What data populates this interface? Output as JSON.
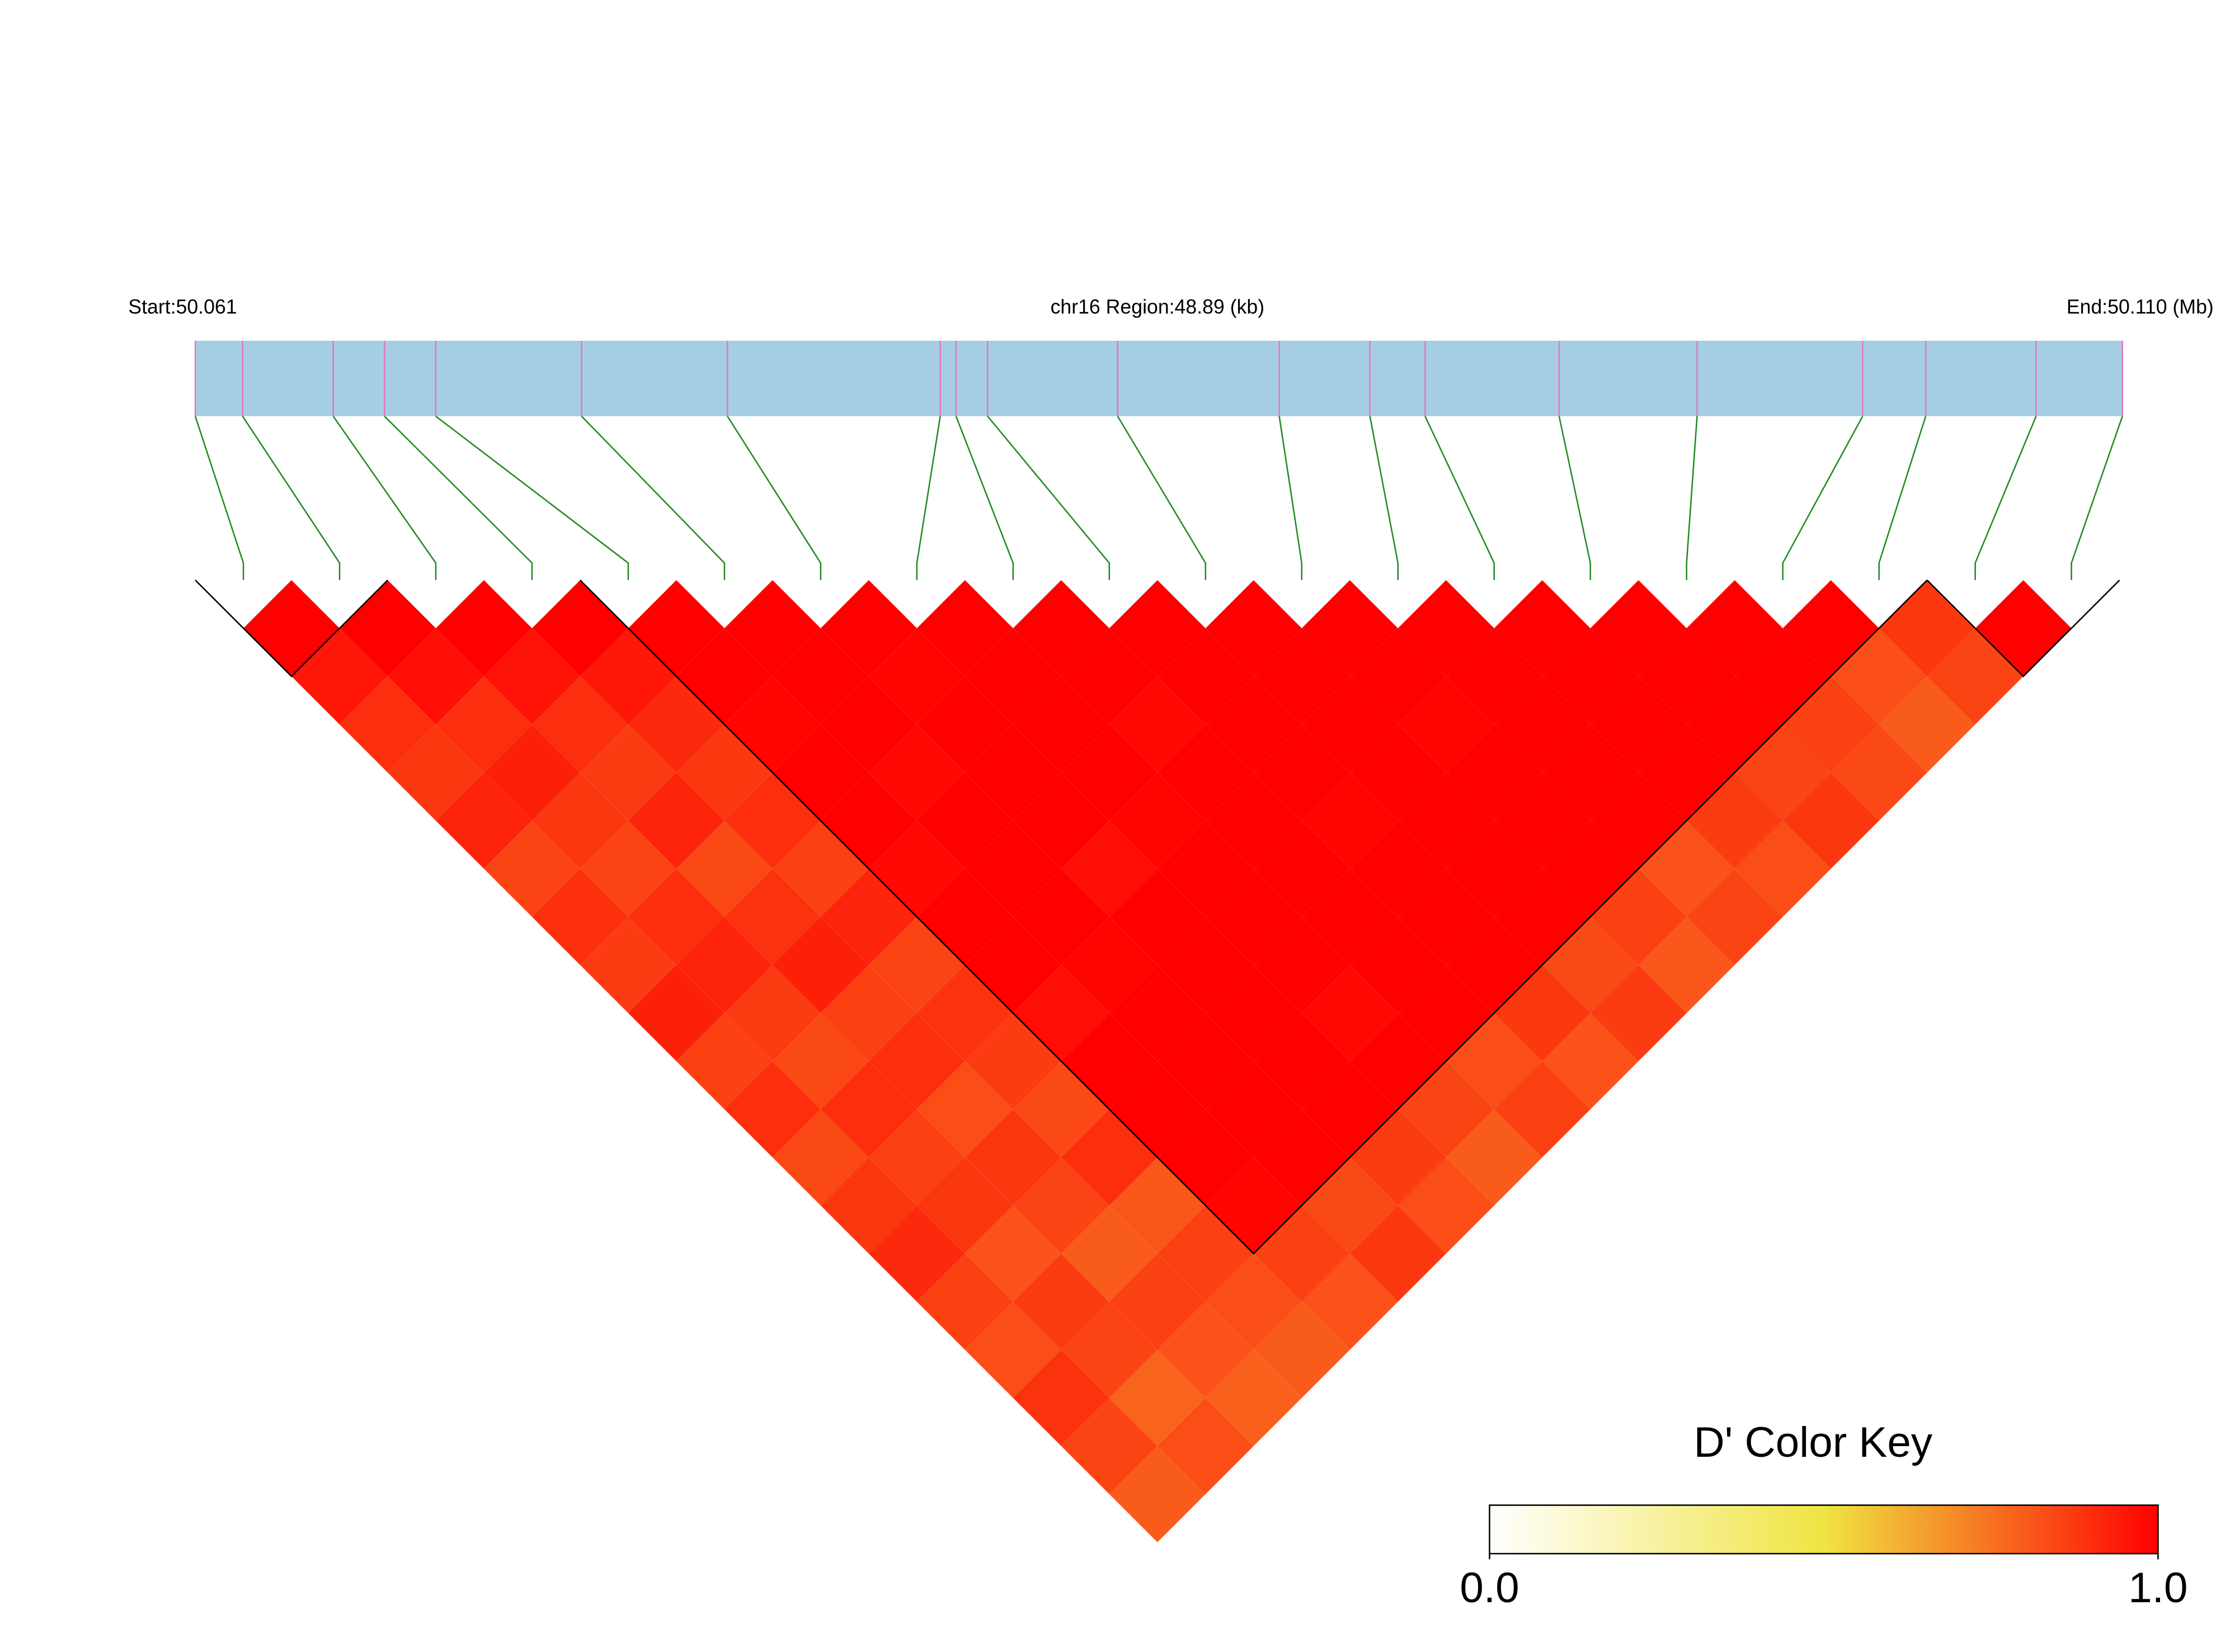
{
  "chart_data": {
    "type": "ld-heatmap",
    "start_label": "Start:50.061",
    "region_label": "chr16 Region:48.89 (kb)",
    "end_label": "End:50.110 (Mb)",
    "key_title": "D' Color Key",
    "xlim": [
      0,
      48.89
    ],
    "snp_positions": [
      0,
      1.2,
      3.5,
      4.8,
      6.1,
      9.8,
      13.5,
      18.9,
      19.3,
      20.1,
      23.4,
      27.5,
      29.8,
      31.2,
      34.6,
      38.1,
      42.3,
      43.9,
      46.7,
      48.89
    ],
    "dprime": [
      [
        1,
        0.95,
        0.9,
        0.88,
        0.92,
        0.85,
        0.9,
        0.87,
        0.93,
        0.86,
        0.9,
        0.84,
        0.88,
        0.91,
        0.86,
        0.83,
        0.89,
        0.85,
        0.8
      ],
      [
        1,
        0.97,
        0.9,
        0.93,
        0.88,
        0.85,
        0.9,
        0.92,
        0.87,
        0.84,
        0.9,
        0.86,
        0.88,
        0.82,
        0.87,
        0.85,
        0.78,
        0.83
      ],
      [
        1,
        0.96,
        0.9,
        0.87,
        0.92,
        0.84,
        0.89,
        0.93,
        0.86,
        0.9,
        0.83,
        0.88,
        0.85,
        0.8,
        0.86,
        0.82,
        0.79
      ],
      [
        1,
        0.95,
        0.91,
        0.88,
        0.9,
        0.86,
        0.92,
        0.85,
        0.89,
        0.87,
        0.84,
        0.9,
        0.81,
        0.86,
        0.83,
        0.8
      ],
      [
        1,
        1,
        0.99,
        1,
        1,
        0.98,
        1,
        1,
        0.97,
        1,
        1,
        1,
        0.99,
        0.86,
        0.82
      ],
      [
        1,
        1,
        1,
        0.98,
        1,
        1,
        1,
        0.99,
        1,
        1,
        1,
        1,
        0.84,
        0.88
      ],
      [
        1,
        0.99,
        1,
        1,
        1,
        0.97,
        1,
        1,
        1,
        1,
        1,
        0.87,
        0.83
      ],
      [
        1,
        1,
        1,
        1,
        0.99,
        1,
        1,
        1,
        0.98,
        1,
        0.85,
        0.8
      ],
      [
        1,
        1,
        0.98,
        1,
        1,
        1,
        1,
        1,
        1,
        0.83,
        0.86
      ],
      [
        1,
        1,
        1,
        1,
        0.99,
        1,
        1,
        1,
        0.88,
        0.82
      ],
      [
        1,
        1,
        1,
        1,
        1,
        1,
        1,
        0.84,
        0.87
      ],
      [
        1,
        1,
        0.99,
        1,
        1,
        1,
        0.86,
        0.81
      ],
      [
        1,
        1,
        1,
        1,
        1,
        0.82,
        0.85
      ],
      [
        1,
        1,
        1,
        1,
        0.87,
        0.83
      ],
      [
        1,
        1,
        1,
        0.85,
        0.88
      ],
      [
        1,
        1,
        0.86,
        0.84
      ],
      [
        1,
        0.83,
        0.8
      ],
      [
        0.88,
        0.85
      ],
      [
        1
      ]
    ],
    "blocks": [
      [
        0,
        1
      ],
      [
        4,
        17
      ],
      [
        18,
        19
      ]
    ],
    "key_lim": [
      0,
      1
    ],
    "key_ticks": [
      {
        "value": 0,
        "label": "0.0"
      },
      {
        "value": 1,
        "label": "1.0"
      }
    ]
  }
}
